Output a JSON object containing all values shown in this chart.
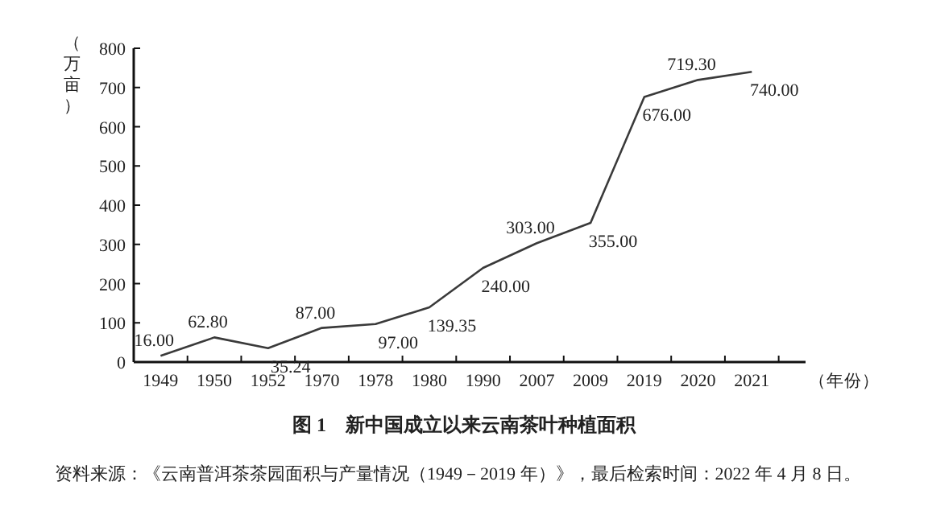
{
  "chart_data": {
    "type": "line",
    "title": "图 1　新中国成立以来云南茶叶种植面积",
    "ylabel": "（万亩）",
    "xlabel": "（年份）",
    "categories": [
      "1949",
      "1950",
      "1952",
      "1970",
      "1978",
      "1980",
      "1990",
      "2007",
      "2009",
      "2019",
      "2020",
      "2021"
    ],
    "values": [
      16.0,
      62.8,
      35.24,
      87.0,
      97.0,
      139.35,
      240.0,
      303.0,
      355.0,
      676.0,
      719.3,
      740.0
    ],
    "value_labels": [
      "16.00",
      "62.80",
      "35.24",
      "87.00",
      "97.00",
      "139.35",
      "240.00",
      "303.00",
      "355.00",
      "676.00",
      "719.30",
      "740.00"
    ],
    "color": "#3a3a3a",
    "ylim": [
      0,
      800
    ],
    "yticks": [
      0,
      100,
      200,
      300,
      400,
      500,
      600,
      700,
      800
    ],
    "grid": false,
    "marker": "none",
    "line_style": "solid",
    "annotations": [
      "资料来源：《云南普洱茶茶园面积与产量情况（1949－2019 年）》，最后检索时间：2022 年 4 月 8 日。"
    ]
  }
}
